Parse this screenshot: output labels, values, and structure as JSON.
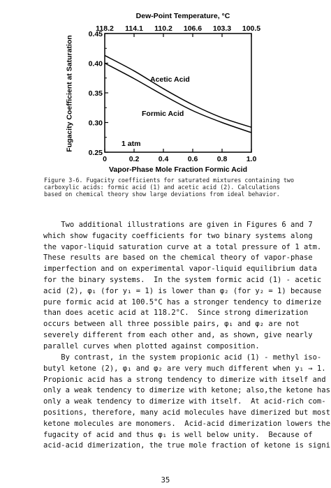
{
  "figure": {
    "caption": "Figure 3-6. Fugacity coefficients for saturated mixtures containing two carboxylic acids: formic acid (1) and acetic acid (2). Calculations based on chemical theory show large deviations from ideal behavior."
  },
  "chart_data": {
    "type": "line",
    "title": "",
    "xlabel": "Vapor-Phase Mole Fraction Formic Acid",
    "ylabel": "Fugacity Coefficient at Saturation",
    "top_xlabel": "Dew-Point Temperature, °C",
    "xlim": [
      0,
      1.0
    ],
    "ylim": [
      0.25,
      0.45
    ],
    "x_ticks": [
      "0",
      "0.2",
      "0.4",
      "0.6",
      "0.8",
      "1.0"
    ],
    "y_ticks": [
      "0.25",
      "0.30",
      "0.35",
      "0.40",
      "0.45"
    ],
    "top_ticks": [
      "118.2",
      "114.1",
      "110.2",
      "106.6",
      "103.3",
      "100.5"
    ],
    "annotation": "1 atm",
    "grid": false,
    "series": [
      {
        "name": "Acetic Acid",
        "x": [
          0,
          0.2,
          0.4,
          0.6,
          0.8,
          1.0
        ],
        "y": [
          0.413,
          0.387,
          0.357,
          0.33,
          0.308,
          0.292
        ]
      },
      {
        "name": "Formic Acid",
        "x": [
          0,
          0.2,
          0.4,
          0.6,
          0.8,
          1.0
        ],
        "y": [
          0.4,
          0.374,
          0.346,
          0.32,
          0.3,
          0.283
        ]
      }
    ]
  },
  "paragraphs": [
    "    Two additional illustrations are given in Figures 6 and 7\nwhich show fugacity coefficients for two binary systems along\nthe vapor-liquid saturation curve at a total pressure of 1 atm.\nThese results are based on the chemical theory of vapor-phase\nimperfection and on experimental vapor-liquid equilibrium data\nfor the binary systems.  In the system formic acid (1) - acetic\nacid (2), φ₁ (for y₁ = 1) is lower than φ₂ (for y₂ = 1) because\npure formic acid at 100.5°C has a stronger tendency to dimerize\nthan does acetic acid at 118.2°C.  Since strong dimerization\noccurs between all three possible pairs, φ₁ and φ₂ are not\nseverely different from each other and, as shown, give nearly\nparallel curves when plotted against composition.",
    "    By contrast, in the system propionic acid (1) - methyl iso-\nbutyl ketone (2), φ₁ and φ₂ are very much different when y₁ → 1.\nPropionic acid has a strong tendency to dimerize with itself and\nonly a weak tendency to dimerize with ketone; also,the ketone has\nonly a weak tendency to dimerize with itself.  At acid-rich com-\npositions, therefore, many acid molecules have dimerized but most\nketone molecules are monomers.  Acid-acid dimerization lowers the\nfugacity of acid and thus φ₁ is well below unity.  Because of\nacid-acid dimerization, the true mole fraction of ketone is signi-"
  ],
  "page_number": "35"
}
